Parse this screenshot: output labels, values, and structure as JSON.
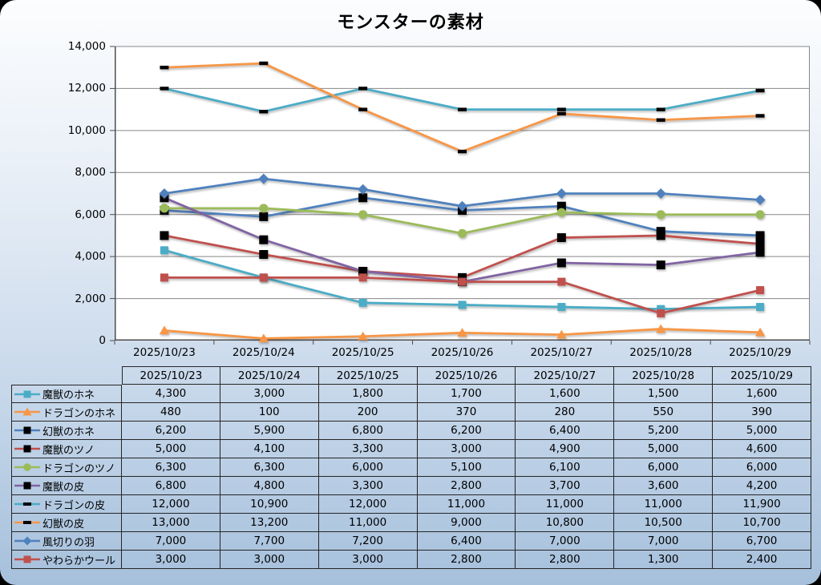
{
  "chart_data": {
    "type": "line",
    "title": "モンスターの素材",
    "categories": [
      "2025/10/23",
      "2025/10/24",
      "2025/10/25",
      "2025/10/26",
      "2025/10/27",
      "2025/10/28",
      "2025/10/29"
    ],
    "series": [
      {
        "name": "魔獣のホネ",
        "values": [
          4300,
          3000,
          1800,
          1700,
          1600,
          1500,
          1600
        ],
        "color": "#4BACC6",
        "marker": "square",
        "marker_color": "#4BACC6"
      },
      {
        "name": "ドラゴンのホネ",
        "values": [
          480,
          100,
          200,
          370,
          280,
          550,
          390
        ],
        "color": "#F79646",
        "marker": "triangle",
        "marker_color": "#F79646"
      },
      {
        "name": "幻獣のホネ",
        "values": [
          6200,
          5900,
          6800,
          6200,
          6400,
          5200,
          5000
        ],
        "color": "#4F81BD",
        "marker": "square",
        "marker_color": "#000000"
      },
      {
        "name": "魔獣のツノ",
        "values": [
          5000,
          4100,
          3300,
          3000,
          4900,
          5000,
          4600
        ],
        "color": "#C0504D",
        "marker": "square",
        "marker_color": "#000000"
      },
      {
        "name": "ドラゴンのツノ",
        "values": [
          6300,
          6300,
          6000,
          5100,
          6100,
          6000,
          6000
        ],
        "color": "#9BBB59",
        "marker": "circle",
        "marker_color": "#9BBB59"
      },
      {
        "name": "魔獣の皮",
        "values": [
          6800,
          4800,
          3300,
          2800,
          3700,
          3600,
          4200
        ],
        "color": "#8064A2",
        "marker": "square",
        "marker_color": "#000000"
      },
      {
        "name": "ドラゴンの皮",
        "values": [
          12000,
          10900,
          12000,
          11000,
          11000,
          11000,
          11900
        ],
        "color": "#4BACC6",
        "marker": "dash",
        "marker_color": "#000000"
      },
      {
        "name": "幻獣の皮",
        "values": [
          13000,
          13200,
          11000,
          9000,
          10800,
          10500,
          10700
        ],
        "color": "#F79646",
        "marker": "dash",
        "marker_color": "#000000"
      },
      {
        "name": "風切りの羽",
        "values": [
          7000,
          7700,
          7200,
          6400,
          7000,
          7000,
          6700
        ],
        "color": "#4F81BD",
        "marker": "diamond",
        "marker_color": "#4F81BD"
      },
      {
        "name": "やわらかウール",
        "values": [
          3000,
          3000,
          3000,
          2800,
          2800,
          1300,
          2400
        ],
        "color": "#C0504D",
        "marker": "square",
        "marker_color": "#C0504D"
      }
    ],
    "ylim": [
      0,
      14000
    ],
    "y_step": 2000,
    "y_tick_labels": [
      "0",
      "2,000",
      "4,000",
      "6,000",
      "8,000",
      "10,000",
      "12,000",
      "14,000"
    ],
    "grid": true,
    "legend_position": "table-left-column"
  },
  "table": {
    "columns": [
      "",
      "2025/10/23",
      "2025/10/24",
      "2025/10/25",
      "2025/10/26",
      "2025/10/27",
      "2025/10/28",
      "2025/10/29"
    ],
    "rows": [
      {
        "label": "魔獣のホネ",
        "values": [
          "4,300",
          "3,000",
          "1,800",
          "1,700",
          "1,600",
          "1,500",
          "1,600"
        ]
      },
      {
        "label": "ドラゴンのホネ",
        "values": [
          "480",
          "100",
          "200",
          "370",
          "280",
          "550",
          "390"
        ]
      },
      {
        "label": "幻獣のホネ",
        "values": [
          "6,200",
          "5,900",
          "6,800",
          "6,200",
          "6,400",
          "5,200",
          "5,000"
        ]
      },
      {
        "label": "魔獣のツノ",
        "values": [
          "5,000",
          "4,100",
          "3,300",
          "3,000",
          "4,900",
          "5,000",
          "4,600"
        ]
      },
      {
        "label": "ドラゴンのツノ",
        "values": [
          "6,300",
          "6,300",
          "6,000",
          "5,100",
          "6,100",
          "6,000",
          "6,000"
        ]
      },
      {
        "label": "魔獣の皮",
        "values": [
          "6,800",
          "4,800",
          "3,300",
          "2,800",
          "3,700",
          "3,600",
          "4,200"
        ]
      },
      {
        "label": "ドラゴンの皮",
        "values": [
          "12,000",
          "10,900",
          "12,000",
          "11,000",
          "11,000",
          "11,000",
          "11,900"
        ]
      },
      {
        "label": "幻獣の皮",
        "values": [
          "13,000",
          "13,200",
          "11,000",
          "9,000",
          "10,800",
          "10,500",
          "10,700"
        ]
      },
      {
        "label": "風切りの羽",
        "values": [
          "7,000",
          "7,700",
          "7,200",
          "6,400",
          "7,000",
          "7,000",
          "6,700"
        ]
      },
      {
        "label": "やわらかウール",
        "values": [
          "3,000",
          "3,000",
          "3,000",
          "2,800",
          "2,800",
          "1,300",
          "2,400"
        ]
      }
    ]
  },
  "palette": {
    "plot_background": "#FFFFFF",
    "gridline": "#878787",
    "axis": "#4D4D4D",
    "table_border": "#262626",
    "frame_corner": "#000000",
    "background_top": "#FCFDFE",
    "background_bottom": "#A6C0DC"
  }
}
